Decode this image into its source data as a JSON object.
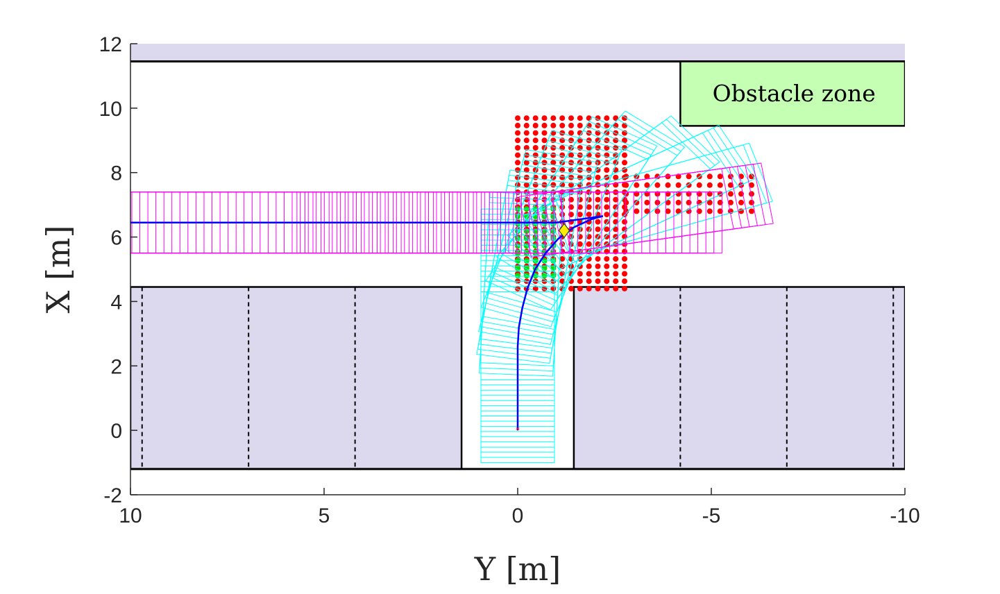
{
  "chart_data": {
    "type": "scatter",
    "xlabel": "Y [m]",
    "ylabel": "X [m]",
    "xlim": [
      10,
      -10
    ],
    "ylim": [
      -2,
      12
    ],
    "x_reversed": true,
    "xticks": [
      10,
      5,
      0,
      -5,
      -10
    ],
    "yticks": [
      -2,
      0,
      2,
      4,
      6,
      8,
      10,
      12
    ],
    "grid": false,
    "annotation": "Obstacle zone",
    "colors": {
      "parking_fill": "#dcd8ee",
      "obstacle_fill": "#c5ffb3",
      "trajectory": "#0000ff",
      "footprint_start": "#00ffff",
      "footprint_end": "#ff00ff",
      "grid_blocked": "#ff0000",
      "grid_free": "#00dd00",
      "waypoint": "#ffee00",
      "start_marker": "#ff0000"
    },
    "road": {
      "upper_edge_x": 11.45,
      "lower_edge_x": -1.2,
      "parking_row_top_x": 4.45
    },
    "upper_shaded_band": {
      "x_range": [
        11.45,
        12.0
      ]
    },
    "parking_blocks": [
      {
        "y_range": [
          10.0,
          1.45
        ],
        "x_range": [
          -1.2,
          4.45
        ]
      },
      {
        "y_range": [
          -1.45,
          -10.0
        ],
        "x_range": [
          -1.2,
          4.45
        ]
      }
    ],
    "parking_dividers_y": [
      9.7,
      6.95,
      4.2,
      -4.2,
      -6.95,
      -9.7
    ],
    "obstacle_zone": {
      "y_range": [
        -4.2,
        -10.0
      ],
      "x_range": [
        9.45,
        11.45
      ]
    },
    "trajectory": [
      {
        "y": 0.0,
        "x": 0.0
      },
      {
        "y": 0.0,
        "x": 1.0
      },
      {
        "y": 0.0,
        "x": 2.0
      },
      {
        "y": 0.0,
        "x": 2.6
      },
      {
        "y": -0.03,
        "x": 3.2
      },
      {
        "y": -0.12,
        "x": 3.8
      },
      {
        "y": -0.25,
        "x": 4.4
      },
      {
        "y": -0.45,
        "x": 5.0
      },
      {
        "y": -0.72,
        "x": 5.5
      },
      {
        "y": -1.05,
        "x": 5.95
      },
      {
        "y": -1.45,
        "x": 6.3
      },
      {
        "y": -1.9,
        "x": 6.55
      },
      {
        "y": -2.2,
        "x": 6.65
      }
    ],
    "reference_line": [
      {
        "y": 10.0,
        "x": 6.45
      },
      {
        "y": -1.0,
        "x": 6.45
      },
      {
        "y": -2.2,
        "x": 6.65
      }
    ],
    "waypoint": {
      "y": -1.2,
      "x": 6.2
    },
    "start": {
      "y": 0.0,
      "x": 0.0
    },
    "vehicle": {
      "length": 5.3,
      "width": 1.9,
      "rear_overhang": 1.0
    },
    "grid_points": {
      "blocked_block_1": {
        "y_range": [
          0.0,
          -2.8
        ],
        "x_range": [
          4.4,
          9.8
        ],
        "step": 0.23
      },
      "blocked_block_2": {
        "y_range": [
          -2.8,
          -6.1
        ],
        "x_range": [
          6.8,
          8.0
        ],
        "step": 0.27
      },
      "free_block": {
        "y_range": [
          0.0,
          -0.95
        ],
        "x_range": [
          4.8,
          7.0
        ],
        "step": 0.23
      }
    }
  }
}
